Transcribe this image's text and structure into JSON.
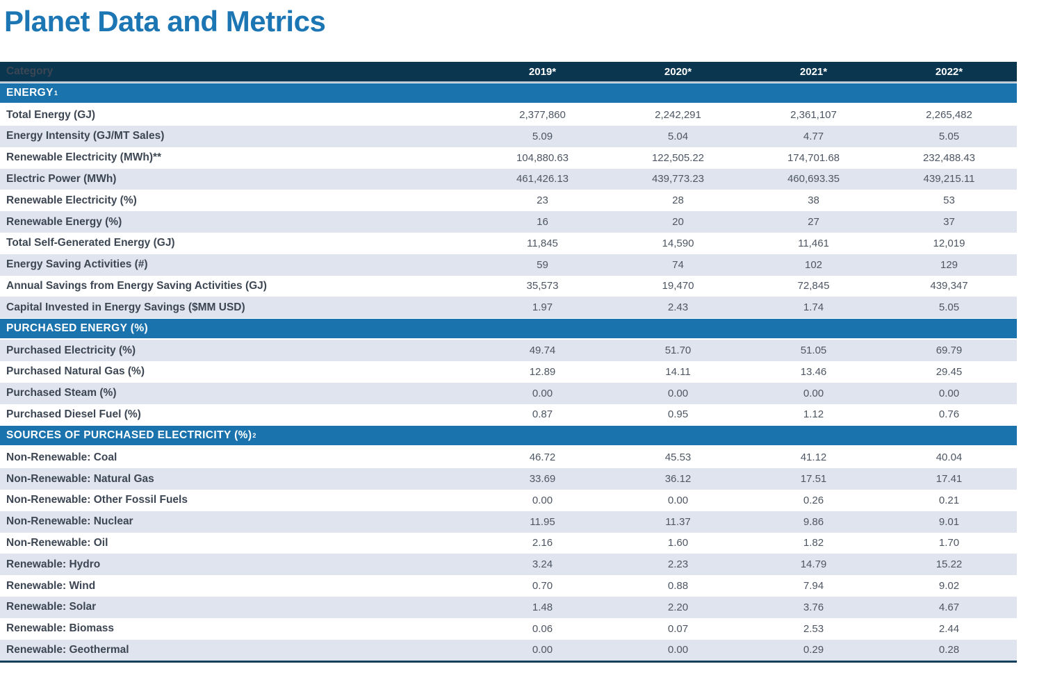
{
  "title": "Planet Data and Metrics",
  "colors": {
    "title_blue": "#1d76b4",
    "header_navy": "#0a3650",
    "section_band_blue": "#1b73ad",
    "row_stripe": "#dfe4ef",
    "label_text": "#3d4653",
    "value_text": "#4d5662",
    "header_divider": "#a8b6c2"
  },
  "table": {
    "header": {
      "category_label": "Category",
      "years": [
        "2019*",
        "2020*",
        "2021*",
        "2022*"
      ]
    },
    "sections": [
      {
        "label": "ENERGY",
        "sup": "1",
        "rows": [
          {
            "label": "Total Energy (GJ)",
            "values": [
              "2,377,860",
              "2,242,291",
              "2,361,107",
              "2,265,482"
            ]
          },
          {
            "label": "Energy Intensity (GJ/MT Sales)",
            "values": [
              "5.09",
              "5.04",
              "4.77",
              "5.05"
            ]
          },
          {
            "label": "Renewable Electricity (MWh)**",
            "values": [
              "104,880.63",
              "122,505.22",
              "174,701.68",
              "232,488.43"
            ]
          },
          {
            "label": "Electric Power (MWh)",
            "values": [
              "461,426.13",
              "439,773.23",
              "460,693.35",
              "439,215.11"
            ]
          },
          {
            "label": "Renewable Electricity (%)",
            "values": [
              "23",
              "28",
              "38",
              "53"
            ]
          },
          {
            "label": "Renewable Energy (%)",
            "values": [
              "16",
              "20",
              "27",
              "37"
            ]
          },
          {
            "label": "Total Self-Generated Energy (GJ)",
            "values": [
              "11,845",
              "14,590",
              "11,461",
              "12,019"
            ]
          },
          {
            "label": "Energy Saving Activities (#)",
            "values": [
              "59",
              "74",
              "102",
              "129"
            ]
          },
          {
            "label": "Annual Savings from Energy Saving Activities (GJ)",
            "values": [
              "35,573",
              "19,470",
              "72,845",
              "439,347"
            ]
          },
          {
            "label": "Capital Invested in Energy Savings ($MM USD)",
            "values": [
              "1.97",
              "2.43",
              "1.74",
              "5.05"
            ]
          }
        ]
      },
      {
        "label": "PURCHASED ENERGY (%)",
        "sup": "",
        "rows": [
          {
            "label": "Purchased Electricity (%)",
            "values": [
              "49.74",
              "51.70",
              "51.05",
              "69.79"
            ]
          },
          {
            "label": "Purchased Natural Gas (%)",
            "values": [
              "12.89",
              "14.11",
              "13.46",
              "29.45"
            ]
          },
          {
            "label": "Purchased Steam (%)",
            "values": [
              "0.00",
              "0.00",
              "0.00",
              "0.00"
            ]
          },
          {
            "label": "Purchased Diesel Fuel (%)",
            "values": [
              "0.87",
              "0.95",
              "1.12",
              "0.76"
            ]
          }
        ]
      },
      {
        "label": "SOURCES OF PURCHASED ELECTRICITY (%)",
        "sup": "2",
        "rows": [
          {
            "label": "Non-Renewable: Coal",
            "values": [
              "46.72",
              "45.53",
              "41.12",
              "40.04"
            ]
          },
          {
            "label": "Non-Renewable: Natural Gas",
            "values": [
              "33.69",
              "36.12",
              "17.51",
              "17.41"
            ]
          },
          {
            "label": "Non-Renewable: Other Fossil Fuels",
            "values": [
              "0.00",
              "0.00",
              "0.26",
              "0.21"
            ]
          },
          {
            "label": "Non-Renewable: Nuclear",
            "values": [
              "11.95",
              "11.37",
              "9.86",
              "9.01"
            ]
          },
          {
            "label": "Non-Renewable: Oil",
            "values": [
              "2.16",
              "1.60",
              "1.82",
              "1.70"
            ]
          },
          {
            "label": "Renewable: Hydro",
            "values": [
              "3.24",
              "2.23",
              "14.79",
              "15.22"
            ]
          },
          {
            "label": "Renewable: Wind",
            "values": [
              "0.70",
              "0.88",
              "7.94",
              "9.02"
            ]
          },
          {
            "label": "Renewable: Solar",
            "values": [
              "1.48",
              "2.20",
              "3.76",
              "4.67"
            ]
          },
          {
            "label": "Renewable: Biomass",
            "values": [
              "0.06",
              "0.07",
              "2.53",
              "2.44"
            ]
          },
          {
            "label": "Renewable: Geothermal",
            "values": [
              "0.00",
              "0.00",
              "0.29",
              "0.28"
            ]
          }
        ]
      }
    ]
  }
}
